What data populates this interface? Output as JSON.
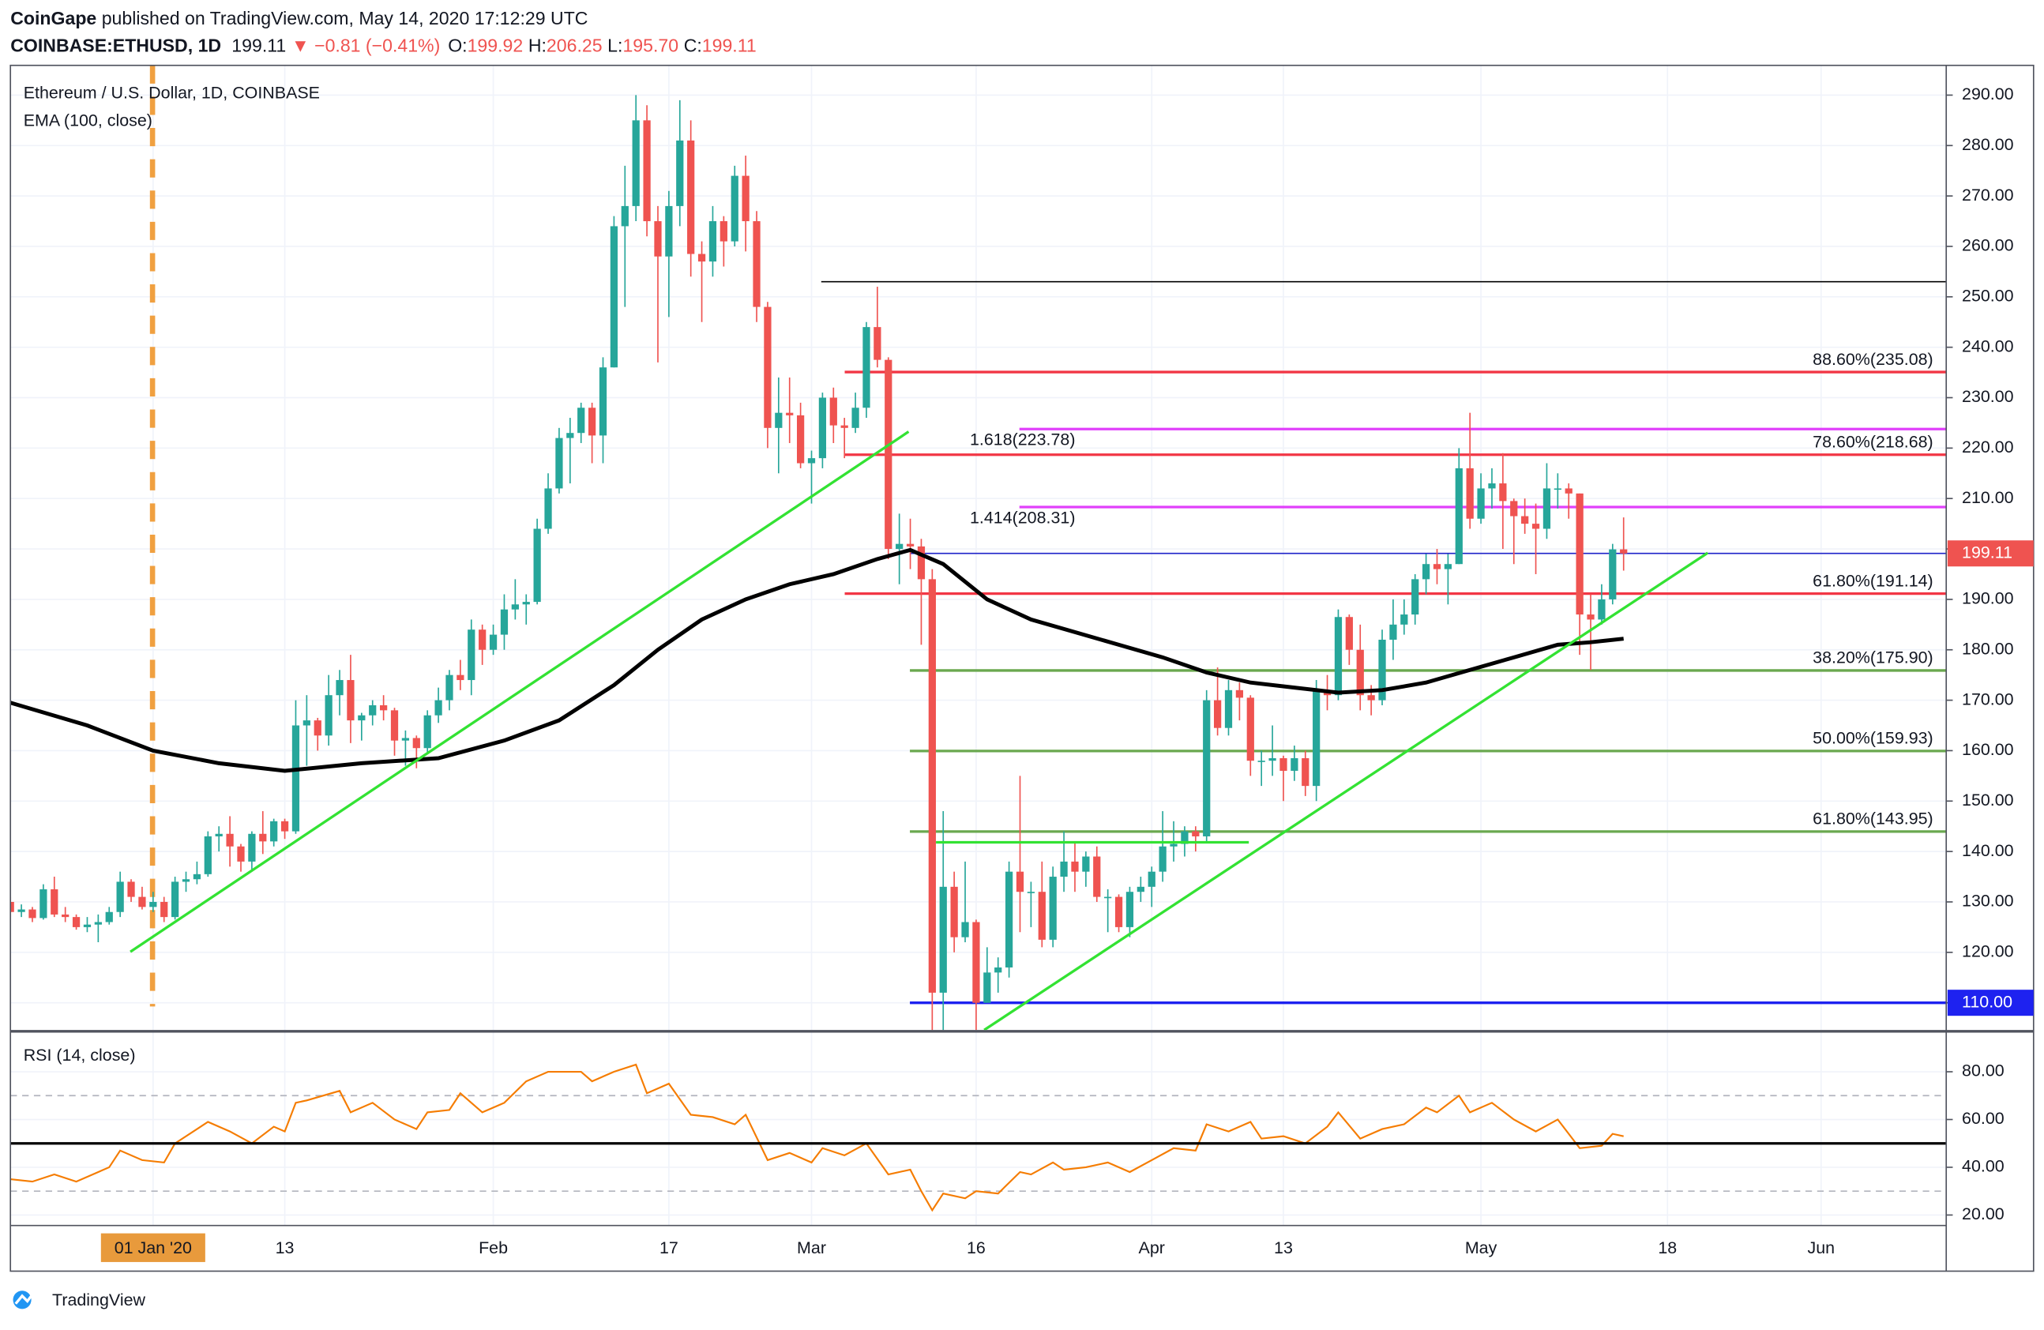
{
  "header": {
    "publisher": "CoinGape",
    "published": " published on TradingView.com, May 14, 2020 17:12:29 UTC",
    "symbol": "COINBASE:ETHUSD, 1D",
    "last": "199.11",
    "change": "▼ −0.81 (−0.41%)",
    "ohlc": [
      {
        "key": "O:",
        "value": "199.92"
      },
      {
        "key": "H:",
        "value": "206.25"
      },
      {
        "key": "L:",
        "value": "195.70"
      },
      {
        "key": "C:",
        "value": "199.11"
      }
    ]
  },
  "footer": {
    "brand": "TradingView"
  },
  "chart_data": [
    {
      "type": "candlestick",
      "title": "Ethereum / U.S. Dollar, 1D, COINBASE",
      "up_color": "#26a69a",
      "down_color": "#ef5350",
      "open": [
        130,
        128,
        128.5,
        126.8,
        132.5,
        127.5,
        127,
        125,
        125.5,
        126,
        128,
        134,
        131,
        129,
        130,
        127,
        134,
        134.5,
        135.5,
        143,
        143.5,
        141,
        138,
        143.5,
        142,
        146,
        144,
        165,
        166,
        163,
        171,
        174,
        166,
        167,
        169,
        168,
        162,
        162.5,
        160.5,
        167,
        170,
        175,
        174,
        184,
        180,
        183,
        188,
        189,
        189.5,
        204,
        212,
        222,
        223,
        228,
        222.5,
        236,
        264,
        268,
        285,
        265,
        258,
        268,
        281,
        258.5,
        257,
        265,
        261,
        274,
        265,
        248,
        224,
        227,
        226.5,
        217,
        218,
        230,
        224.5,
        224,
        228,
        244,
        237.5,
        200,
        201,
        200.5,
        194,
        112,
        133,
        123,
        126,
        110,
        116,
        117,
        136,
        132,
        132,
        122.5,
        135,
        138,
        136,
        139,
        131,
        131,
        125,
        132,
        133,
        136,
        141,
        141.5,
        144,
        143,
        170,
        164.5,
        172,
        170.5,
        158,
        158,
        158.5,
        156,
        158.5,
        153,
        172,
        171,
        186.5,
        180,
        171,
        170,
        182,
        185,
        187,
        194,
        197,
        196,
        197,
        216,
        206,
        212,
        213,
        209.5,
        206.5,
        205,
        204,
        212,
        212,
        211,
        187,
        186,
        190,
        199.92
      ],
      "high": [
        131,
        129.5,
        129,
        133.5,
        135,
        129,
        127.5,
        127,
        127.5,
        129,
        136,
        134.5,
        133,
        132,
        131,
        135,
        136,
        138,
        144,
        145,
        147,
        141.5,
        144,
        148,
        146.5,
        146.5,
        170,
        171,
        166.5,
        175,
        176,
        179,
        167.5,
        170,
        171,
        168.5,
        164,
        163,
        168,
        172.5,
        176,
        178,
        186,
        185,
        185,
        191,
        194,
        191,
        206,
        215,
        224,
        226,
        229,
        229,
        238,
        266,
        276,
        290,
        288,
        268,
        271,
        289,
        285,
        261,
        268,
        266,
        276,
        278,
        267,
        249,
        234,
        234,
        229,
        219.5,
        231,
        232,
        226,
        231,
        245,
        252,
        238,
        207,
        206,
        202,
        196,
        148,
        136,
        138,
        126.5,
        121,
        119,
        138,
        155,
        134,
        138,
        137,
        144,
        142,
        140,
        141,
        132.5,
        131.5,
        133,
        135,
        137,
        148,
        146,
        145,
        145,
        172,
        176.5,
        174,
        173.5,
        171,
        160,
        165,
        159,
        161,
        160,
        174,
        175,
        188,
        187,
        185,
        173,
        184,
        190,
        190,
        195,
        199,
        200,
        199,
        220,
        227,
        215,
        216,
        219,
        210,
        210,
        209,
        217,
        215,
        213,
        211,
        191,
        193,
        201,
        206.25
      ],
      "low": [
        127,
        127,
        126,
        126.5,
        127,
        126,
        124.5,
        124,
        122,
        125.5,
        127,
        130,
        128.5,
        128,
        126,
        126.5,
        132,
        133.5,
        135,
        140,
        137,
        136,
        136,
        139.5,
        141,
        142.5,
        143.5,
        157,
        160,
        161,
        167,
        161.5,
        162,
        165,
        166,
        159,
        157,
        156.5,
        159.5,
        165.5,
        168,
        172,
        171,
        177,
        179,
        180,
        186,
        185,
        189,
        203,
        211,
        213,
        221,
        217,
        217,
        236,
        248,
        265,
        262,
        237,
        246,
        264,
        254,
        245,
        254,
        256,
        260,
        259,
        245,
        220,
        215,
        221,
        216,
        209,
        216,
        221,
        218,
        223,
        226,
        236,
        198,
        193,
        196,
        181,
        102,
        102,
        120,
        122,
        102,
        110,
        112,
        115,
        124,
        125,
        121,
        121,
        132,
        132,
        133,
        130,
        124,
        124,
        123,
        130,
        129,
        134,
        138,
        139,
        140,
        142,
        163,
        163,
        166,
        155,
        153,
        155,
        150,
        154,
        151,
        150,
        168,
        170,
        177,
        168,
        167,
        169,
        178,
        183,
        185,
        191,
        193,
        189,
        197,
        204,
        205,
        208,
        200,
        197,
        203,
        195,
        202,
        208,
        206,
        179,
        176,
        185,
        189,
        195.7
      ],
      "close": [
        128,
        128.5,
        126.8,
        132.5,
        127.5,
        127,
        125,
        125.5,
        126,
        128,
        134,
        131,
        129,
        130,
        127,
        134,
        134.5,
        135.5,
        143,
        143.5,
        141,
        138,
        143.5,
        142,
        146,
        144,
        165,
        166,
        163,
        171,
        174,
        166,
        167,
        169,
        168,
        162,
        162.5,
        160.5,
        167,
        170,
        175,
        174,
        184,
        180,
        183,
        188,
        189,
        189.5,
        204,
        212,
        222,
        223,
        228,
        222.5,
        236,
        264,
        268,
        285,
        265,
        258,
        268,
        281,
        258.5,
        257,
        265,
        261,
        274,
        265,
        248,
        224,
        227,
        226.5,
        217,
        218,
        230,
        224.5,
        224,
        228,
        244,
        237.5,
        200,
        201,
        200.5,
        194,
        112,
        133,
        123,
        126,
        110,
        116,
        117,
        136,
        132,
        132,
        122.5,
        135,
        138,
        136,
        139,
        131,
        131,
        125,
        132,
        133,
        136,
        141,
        141.5,
        144,
        143,
        170,
        164.5,
        172,
        170.5,
        158,
        158,
        158.5,
        156,
        158.5,
        153,
        172,
        171,
        186.5,
        180,
        171,
        170,
        182,
        185,
        187,
        194,
        197,
        196,
        197,
        216,
        206,
        212,
        213,
        209.5,
        206.5,
        205,
        204,
        212,
        212,
        211,
        187,
        186,
        190,
        199.92,
        199.11
      ],
      "overlays": [
        {
          "name": "EMA (100, close)",
          "color": "#000000",
          "x": [
            0,
            7,
            13,
            19,
            25,
            32,
            39,
            45,
            50,
            55,
            59,
            63,
            67,
            71,
            75,
            79,
            82,
            85,
            89,
            93,
            97,
            101,
            105,
            109,
            113,
            117,
            121,
            125,
            129,
            133,
            137,
            141,
            144,
            147
          ],
          "values": [
            169.5,
            165,
            160,
            157.5,
            156,
            157.5,
            158.5,
            162,
            166,
            173,
            180,
            186,
            190,
            193,
            195,
            198,
            199.8,
            197,
            190,
            186,
            183.5,
            181,
            178.5,
            175.5,
            173.5,
            172.5,
            171.5,
            172,
            173.5,
            176,
            178.5,
            181,
            181.5,
            182.2
          ]
        }
      ],
      "levels": [
        {
          "value": 253,
          "color": "#000000"
        },
        {
          "label": "88.60%(235.08)",
          "value": 235.08,
          "color": "#f23645"
        },
        {
          "label": "1.618(223.78)",
          "value": 223.78,
          "color": "#e040fb"
        },
        {
          "label": "78.60%(218.68)",
          "value": 218.68,
          "color": "#f23645"
        },
        {
          "label": "1.414(208.31)",
          "value": 208.31,
          "color": "#e040fb"
        },
        {
          "value": 199.11,
          "color": "#1e22c8"
        },
        {
          "label": "61.80%(191.14)",
          "value": 191.14,
          "color": "#f23645"
        },
        {
          "label": "38.20%(175.90)",
          "value": 175.9,
          "color": "#6aa84f"
        },
        {
          "label": "50.00%(159.93)",
          "value": 159.93,
          "color": "#6aa84f"
        },
        {
          "label": "61.80%(143.95)",
          "value": 143.95,
          "color": "#6aa84f"
        },
        {
          "value": 110,
          "color": "#1e22f0"
        }
      ],
      "price_labels": [
        {
          "label": "199.11",
          "value": 199.11,
          "color": "#ef5350"
        },
        {
          "label": "110.00",
          "value": 110,
          "color": "#1e22f0"
        }
      ],
      "xlim": [
        0,
        176.4
      ],
      "xticks": [
        {
          "value": 13,
          "label": "01 Jan '20"
        },
        {
          "value": 25,
          "label": "13"
        },
        {
          "value": 44,
          "label": "Feb"
        },
        {
          "value": 60,
          "label": "17"
        },
        {
          "value": 73,
          "label": "Mar"
        },
        {
          "value": 88,
          "label": "16"
        },
        {
          "value": 104,
          "label": "Apr"
        },
        {
          "value": 116,
          "label": "13"
        },
        {
          "value": 134,
          "label": "May"
        },
        {
          "value": 151,
          "label": "18"
        },
        {
          "value": 165,
          "label": "Jun"
        }
      ],
      "ylim": [
        104.6,
        295.9
      ],
      "yticks": [
        {
          "value": 110,
          "label": "110.00"
        },
        {
          "value": 120,
          "label": "120.00"
        },
        {
          "value": 130,
          "label": "130.00"
        },
        {
          "value": 140,
          "label": "140.00"
        },
        {
          "value": 150,
          "label": "150.00"
        },
        {
          "value": 160,
          "label": "160.00"
        },
        {
          "value": 170,
          "label": "170.00"
        },
        {
          "value": 180,
          "label": "180.00"
        },
        {
          "value": 190,
          "label": "190.00"
        },
        {
          "value": 200,
          "label": "200.00"
        },
        {
          "value": 210,
          "label": "210.00"
        },
        {
          "value": 220,
          "label": "220.00"
        },
        {
          "value": 230,
          "label": "230.00"
        },
        {
          "value": 240,
          "label": "240.00"
        },
        {
          "value": 250,
          "label": "250.00"
        },
        {
          "value": 260,
          "label": "260.00"
        },
        {
          "value": 270,
          "label": "270.00"
        },
        {
          "value": 280,
          "label": "280.00"
        },
        {
          "value": 290,
          "label": "290.00"
        }
      ],
      "grid": true
    },
    {
      "type": "line",
      "title": "RSI (14, close)",
      "color": "#f57c00",
      "x": [
        0,
        2,
        4,
        6,
        9,
        10,
        12,
        14,
        15,
        18,
        20,
        22,
        24,
        25,
        26,
        27,
        30,
        31,
        33,
        35,
        37,
        38,
        40,
        41,
        43,
        45,
        47,
        49,
        52,
        53,
        55,
        57,
        58,
        60,
        62,
        64,
        66,
        67,
        69,
        71,
        73,
        74,
        76,
        78,
        80,
        82,
        83,
        84,
        85,
        87,
        88,
        90,
        92,
        93,
        95,
        96,
        98,
        100,
        102,
        104,
        106,
        108,
        109,
        111,
        113,
        114,
        116,
        118,
        120,
        121,
        123,
        125,
        127,
        129,
        130,
        132,
        133,
        135,
        137,
        139,
        141,
        143,
        145,
        146,
        147
      ],
      "values": [
        35,
        34,
        37,
        34,
        40,
        47,
        43,
        42,
        50,
        59,
        55,
        50,
        57,
        55,
        67,
        68,
        72,
        63,
        67,
        60,
        56,
        63,
        64,
        71,
        63,
        67,
        76,
        80,
        80,
        76,
        80,
        83,
        71,
        75,
        62,
        61,
        58,
        62,
        43,
        46,
        42,
        48,
        45,
        50,
        37,
        39,
        30,
        22,
        29,
        27,
        30,
        29,
        38,
        37,
        42,
        39,
        40,
        42,
        38,
        43,
        48,
        47,
        58,
        55,
        59,
        52,
        53,
        50,
        57,
        63,
        52,
        56,
        58,
        65,
        63,
        70,
        63,
        67,
        60,
        55,
        60,
        48,
        49,
        54,
        53
      ],
      "midline": 50,
      "bands": [
        70,
        30
      ],
      "xlim": [
        0,
        176.4
      ],
      "ylim": [
        15.6,
        96.4
      ],
      "yticks": [
        {
          "value": 20,
          "label": "20.00"
        },
        {
          "value": 40,
          "label": "40.00"
        },
        {
          "value": 60,
          "label": "60.00"
        },
        {
          "value": 80,
          "label": "80.00"
        }
      ],
      "grid": true
    }
  ]
}
